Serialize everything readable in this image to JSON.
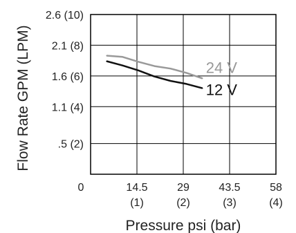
{
  "chart_data": {
    "type": "line",
    "title": "",
    "xlabel": "Pressure psi (bar)",
    "ylabel": "Flow Rate GPM (LPM)",
    "xlim": [
      0,
      58
    ],
    "ylim": [
      0,
      2.6
    ],
    "grid": true,
    "x_ticks": [
      {
        "value": 0,
        "psi": "0",
        "bar": ""
      },
      {
        "value": 14.5,
        "psi": "14.5",
        "bar": "(1)"
      },
      {
        "value": 29,
        "psi": "29",
        "bar": "(2)"
      },
      {
        "value": 43.5,
        "psi": "43.5",
        "bar": "(3)"
      },
      {
        "value": 58,
        "psi": "58",
        "bar": "(4)"
      }
    ],
    "y_ticks": [
      {
        "value": 0.5,
        "label": ".5 (2)"
      },
      {
        "value": 1.1,
        "label": "1.1 (4)"
      },
      {
        "value": 1.6,
        "label": "1.6 (6)"
      },
      {
        "value": 2.1,
        "label": "2.1 (8)"
      },
      {
        "value": 2.6,
        "label": "2.6 (10)"
      }
    ],
    "series": [
      {
        "name": "24 V",
        "color": "#999999",
        "x": [
          5,
          10,
          15,
          20,
          25,
          30,
          35
        ],
        "y": [
          1.93,
          1.91,
          1.83,
          1.76,
          1.72,
          1.65,
          1.56
        ]
      },
      {
        "name": "12 V",
        "color": "#111111",
        "x": [
          5,
          10,
          15,
          20,
          25,
          30,
          35
        ],
        "y": [
          1.84,
          1.77,
          1.69,
          1.59,
          1.52,
          1.47,
          1.4
        ]
      }
    ]
  }
}
